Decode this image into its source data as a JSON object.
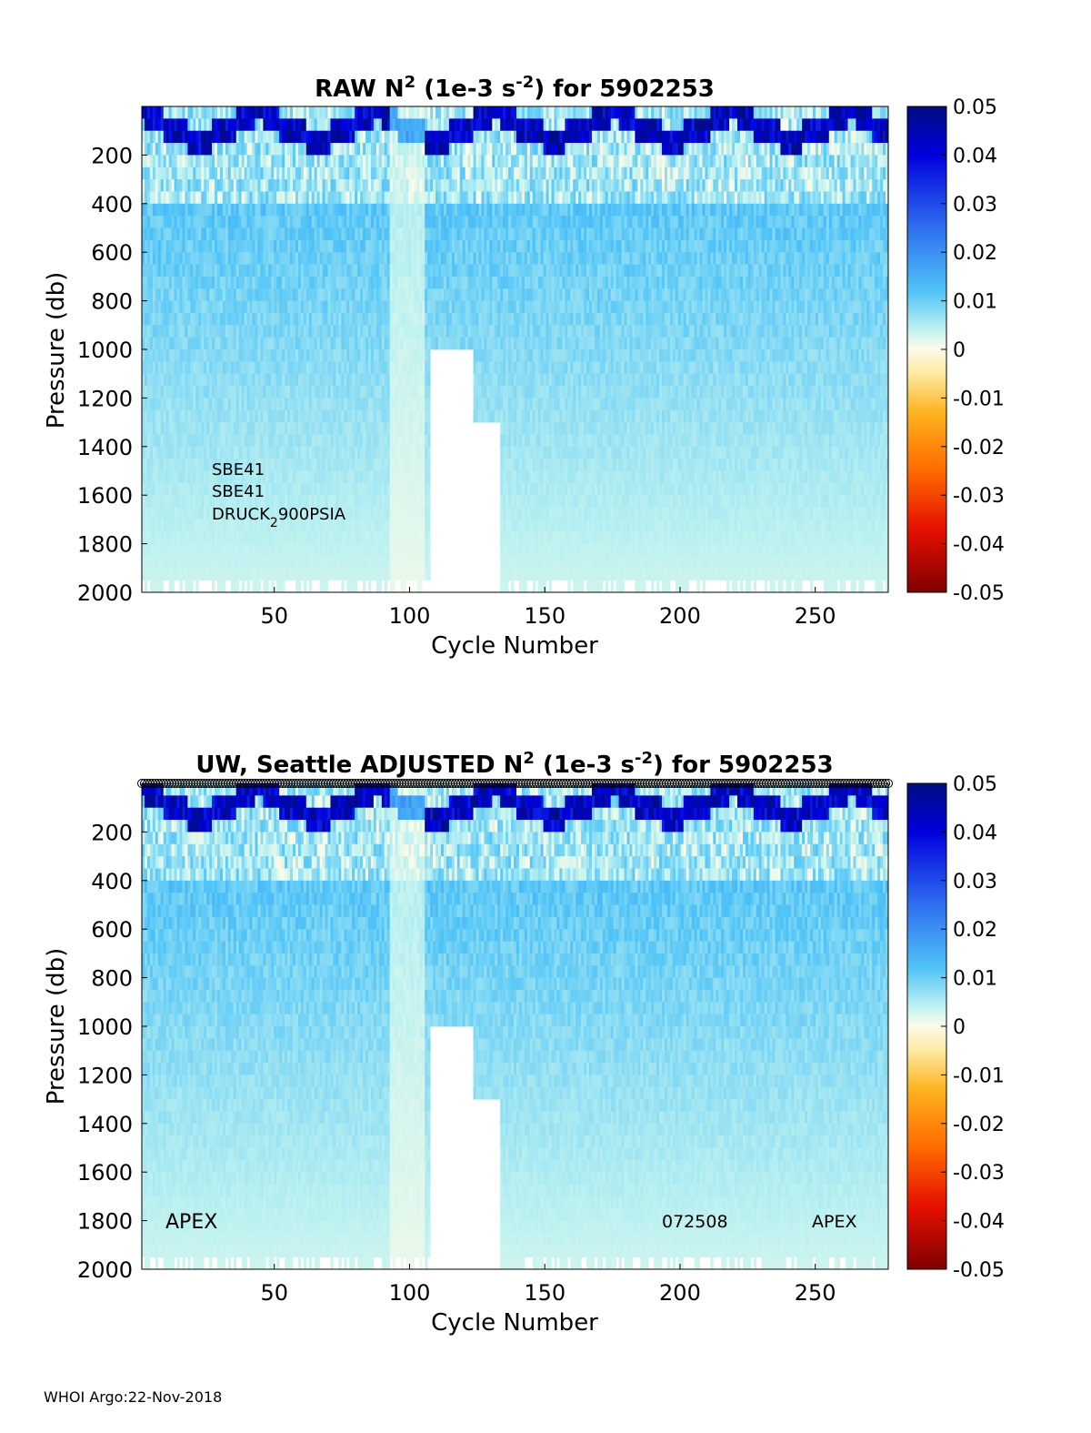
{
  "footer": "WHOI Argo:22-Nov-2018",
  "colorbar_ticks": [
    "0.05",
    "0.04",
    "0.03",
    "0.02",
    "0.01",
    "0",
    "-0.01",
    "-0.02",
    "-0.03",
    "-0.04",
    "-0.05"
  ],
  "chart_data": [
    {
      "type": "heatmap",
      "title_parts": {
        "prefix": "RAW N",
        "sup1": "2",
        "mid": " (1e-3 s",
        "sup2": "-2",
        "suffix": ") for 5902253"
      },
      "xlabel": "Cycle Number",
      "ylabel": "Pressure (db)",
      "xlim": [
        1,
        277
      ],
      "ylim": [
        0,
        2000
      ],
      "y_reversed": true,
      "xticks": [
        50,
        100,
        150,
        200,
        250
      ],
      "yticks": [
        200,
        400,
        600,
        800,
        1000,
        1200,
        1400,
        1600,
        1800,
        2000
      ],
      "color_range": [
        -0.05,
        0.05
      ],
      "colormap": "jet-reversed-with-white-center",
      "annotations": {
        "line1": "SBE41",
        "line2": "SBE41",
        "line3_main": "DRUCK",
        "line3_sub": "2",
        "line3_rest": "900PSIA"
      },
      "gap_cycles": [
        108,
        133
      ],
      "gap_top_pressure": 1000
    },
    {
      "type": "heatmap",
      "title_parts": {
        "prefix": "UW, Seattle  ADJUSTED N",
        "sup1": "2",
        "mid": " (1e-3 s",
        "sup2": "-2",
        "suffix": ") for 5902253"
      },
      "xlabel": "Cycle Number",
      "ylabel": "Pressure (db)",
      "xlim": [
        1,
        277
      ],
      "ylim": [
        0,
        2000
      ],
      "y_reversed": true,
      "xticks": [
        50,
        100,
        150,
        200,
        250
      ],
      "yticks": [
        200,
        400,
        600,
        800,
        1000,
        1200,
        1400,
        1600,
        1800,
        2000
      ],
      "color_range": [
        -0.05,
        0.05
      ],
      "colormap": "jet-reversed-with-white-center",
      "annotations": {
        "left": "APEX",
        "mid": "072508",
        "right": "APEX"
      },
      "gap_cycles": [
        108,
        133
      ],
      "gap_top_pressure": 1000
    }
  ]
}
